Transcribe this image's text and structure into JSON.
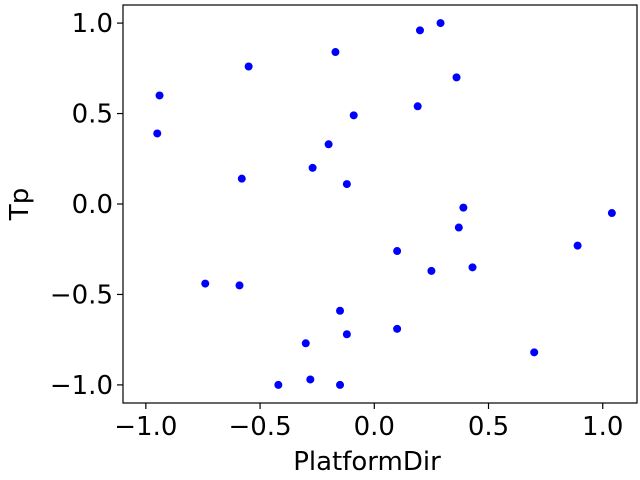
{
  "chart_data": {
    "type": "scatter",
    "xlabel": "PlatformDir",
    "ylabel": "Tp",
    "xlim": [
      -1.1,
      1.15
    ],
    "ylim": [
      -1.1,
      1.1
    ],
    "xticks": [
      -1.0,
      -0.5,
      0.0,
      0.5,
      1.0
    ],
    "xtick_labels": [
      "−1.0",
      "−0.5",
      "0.0",
      "0.5",
      "1.0"
    ],
    "yticks": [
      -1.0,
      -0.5,
      0.0,
      0.5,
      1.0
    ],
    "ytick_labels": [
      "−1.0",
      "−0.5",
      "0.0",
      "0.5",
      "1.0"
    ],
    "grid": false,
    "marker_color": "#0000ff",
    "points": [
      {
        "x": 0.29,
        "y": 1.0
      },
      {
        "x": 0.2,
        "y": 0.96
      },
      {
        "x": -0.17,
        "y": 0.84
      },
      {
        "x": -0.55,
        "y": 0.76
      },
      {
        "x": 0.36,
        "y": 0.7
      },
      {
        "x": -0.94,
        "y": 0.6
      },
      {
        "x": 0.19,
        "y": 0.54
      },
      {
        "x": -0.09,
        "y": 0.49
      },
      {
        "x": -0.95,
        "y": 0.39
      },
      {
        "x": -0.2,
        "y": 0.33
      },
      {
        "x": -0.27,
        "y": 0.2
      },
      {
        "x": -0.58,
        "y": 0.14
      },
      {
        "x": -0.12,
        "y": 0.11
      },
      {
        "x": 0.39,
        "y": -0.02
      },
      {
        "x": 1.04,
        "y": -0.05
      },
      {
        "x": 0.37,
        "y": -0.13
      },
      {
        "x": 0.89,
        "y": -0.23
      },
      {
        "x": 0.1,
        "y": -0.26
      },
      {
        "x": 0.43,
        "y": -0.35
      },
      {
        "x": 0.25,
        "y": -0.37
      },
      {
        "x": -0.74,
        "y": -0.44
      },
      {
        "x": -0.59,
        "y": -0.45
      },
      {
        "x": -0.15,
        "y": -0.59
      },
      {
        "x": 0.1,
        "y": -0.69
      },
      {
        "x": -0.12,
        "y": -0.72
      },
      {
        "x": -0.3,
        "y": -0.77
      },
      {
        "x": 0.7,
        "y": -0.82
      },
      {
        "x": -0.28,
        "y": -0.97
      },
      {
        "x": -0.42,
        "y": -1.0
      },
      {
        "x": -0.15,
        "y": -1.0
      }
    ]
  }
}
